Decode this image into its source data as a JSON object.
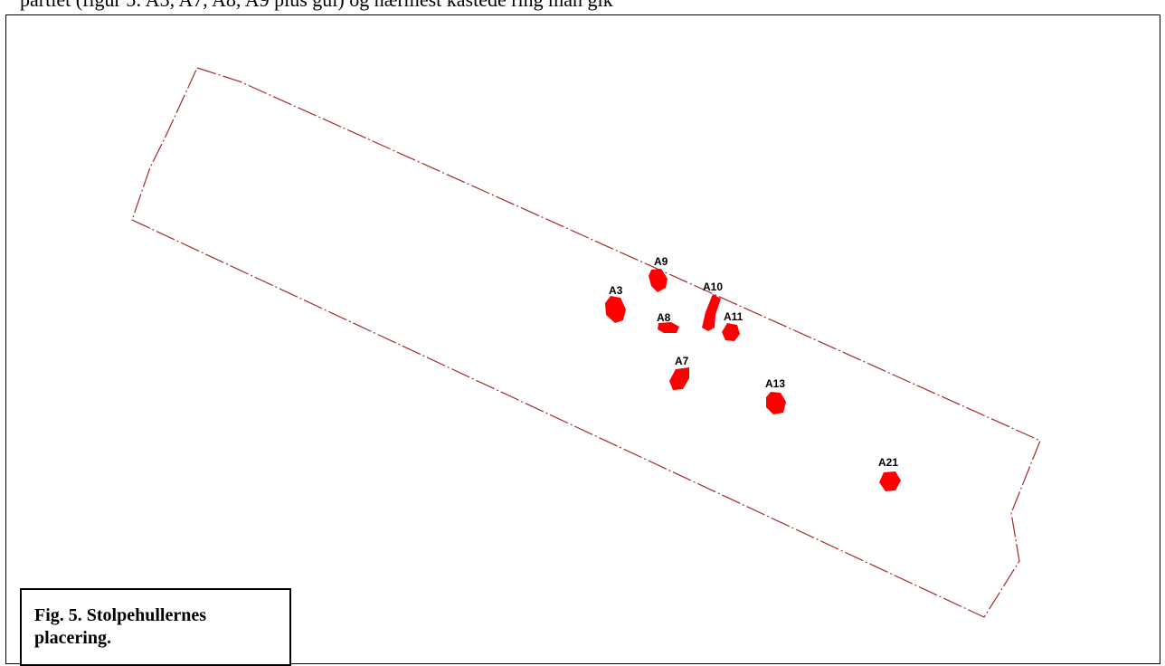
{
  "page": {
    "top_text": "partiet (figur 5: A3, A7, A8, A9 plus gul) og nærmest kastede ring man gik"
  },
  "plan": {
    "outline_color": "#a52a2a",
    "feature_color": "#ff0000",
    "features": [
      {
        "id": "A9",
        "label": "A9"
      },
      {
        "id": "A10",
        "label": "A10"
      },
      {
        "id": "A3",
        "label": "A3"
      },
      {
        "id": "A8",
        "label": "A8"
      },
      {
        "id": "A11",
        "label": "A11"
      },
      {
        "id": "A7",
        "label": "A7"
      },
      {
        "id": "A13",
        "label": "A13"
      },
      {
        "id": "A21",
        "label": "A21"
      }
    ]
  },
  "caption": {
    "text": "Fig. 5. Stolpehullernes placering."
  }
}
